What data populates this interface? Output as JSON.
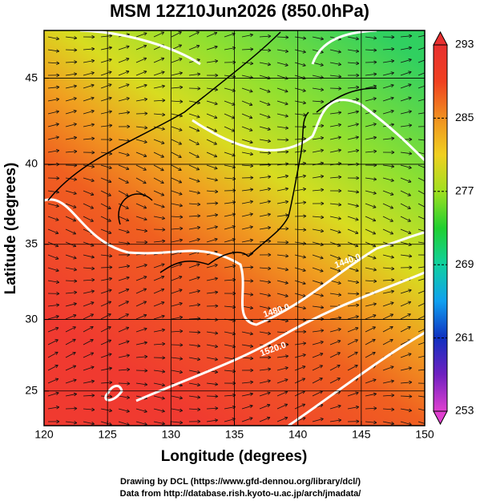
{
  "chart_data": {
    "type": "map",
    "title": "MSM 12Z10Jun2026 (850.0hPa)",
    "x_label": "Longitude (degrees)",
    "y_label": "Latitude  (degrees)",
    "projection": "mercator",
    "xlim": [
      120,
      150
    ],
    "xticks": [
      120,
      125,
      130,
      135,
      140,
      145,
      150
    ],
    "ylim": [
      22.5,
      47.6
    ],
    "yticks": [
      25,
      30,
      35,
      40,
      45
    ],
    "grid": true,
    "contour_labels": [
      "1440.0",
      "1480.0",
      "1520.0"
    ],
    "colorbar": {
      "lim": [
        253,
        293
      ],
      "ticks": [
        253,
        261,
        269,
        277,
        285,
        293
      ],
      "colors": [
        "#e040d0",
        "#7020c0",
        "#1030c0",
        "#10a0f0",
        "#10d0a0",
        "#20d030",
        "#a0e020",
        "#f0d020",
        "#f09020",
        "#f04020",
        "#e83030"
      ]
    },
    "footer": [
      "Drawing by DCL (https://www.gfd-dennou.org/library/dcl/)",
      "Data from http://database.rish.kyoto-u.ac.jp/arch/jmadata/"
    ]
  }
}
